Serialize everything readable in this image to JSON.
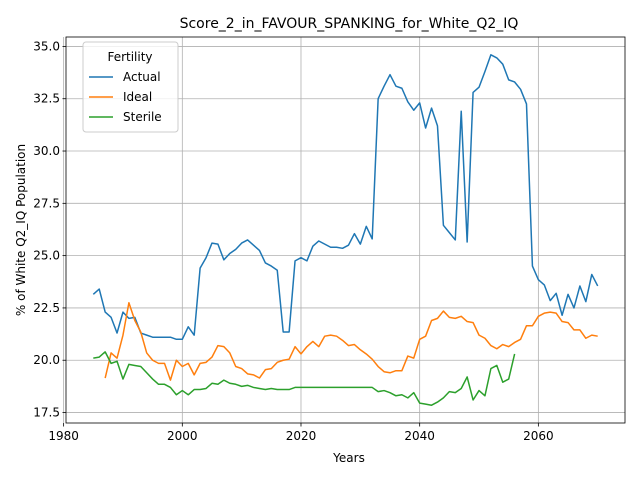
{
  "chart_data": {
    "type": "line",
    "title": "Score_2_in_FAVOUR_SPANKING_for_White_Q2_IQ",
    "xlabel": "Years",
    "ylabel": "% of White Q2_IQ Population",
    "xlim": [
      1980.4,
      2074.6
    ],
    "ylim": [
      17.0,
      35.45
    ],
    "x_ticks": [
      1980,
      2000,
      2020,
      2040,
      2060
    ],
    "y_ticks": [
      17.5,
      20.0,
      22.5,
      25.0,
      27.5,
      30.0,
      32.5,
      35.0
    ],
    "grid": true,
    "legend": {
      "title": "Fertility",
      "placement": "upper-left"
    },
    "series": [
      {
        "name": "Actual",
        "color": "#1f77b4",
        "points": [
          [
            1985,
            23.15
          ],
          [
            1986,
            23.4
          ],
          [
            1987,
            22.3
          ],
          [
            1988,
            22.05
          ],
          [
            1989,
            21.3
          ],
          [
            1990,
            22.3
          ],
          [
            1991,
            22.0
          ],
          [
            1992,
            22.05
          ],
          [
            1993,
            21.3
          ],
          [
            1994,
            21.2
          ],
          [
            1995,
            21.1
          ],
          [
            1996,
            21.1
          ],
          [
            1997,
            21.1
          ],
          [
            1998,
            21.1
          ],
          [
            1999,
            21.0
          ],
          [
            2000,
            21.0
          ],
          [
            2001,
            21.6
          ],
          [
            2002,
            21.2
          ],
          [
            2003,
            24.4
          ],
          [
            2004,
            24.9
          ],
          [
            2005,
            25.6
          ],
          [
            2006,
            25.55
          ],
          [
            2007,
            24.8
          ],
          [
            2008,
            25.1
          ],
          [
            2009,
            25.3
          ],
          [
            2010,
            25.6
          ],
          [
            2011,
            25.75
          ],
          [
            2012,
            25.5
          ],
          [
            2013,
            25.25
          ],
          [
            2014,
            24.65
          ],
          [
            2015,
            24.5
          ],
          [
            2016,
            24.3
          ],
          [
            2017,
            21.35
          ],
          [
            2018,
            21.35
          ],
          [
            2019,
            24.75
          ],
          [
            2020,
            24.9
          ],
          [
            2021,
            24.75
          ],
          [
            2022,
            25.45
          ],
          [
            2023,
            25.7
          ],
          [
            2024,
            25.55
          ],
          [
            2025,
            25.4
          ],
          [
            2026,
            25.4
          ],
          [
            2027,
            25.35
          ],
          [
            2028,
            25.5
          ],
          [
            2029,
            26.05
          ],
          [
            2030,
            25.55
          ],
          [
            2031,
            26.4
          ],
          [
            2032,
            25.8
          ],
          [
            2033,
            32.5
          ],
          [
            2034,
            33.1
          ],
          [
            2035,
            33.65
          ],
          [
            2036,
            33.1
          ],
          [
            2037,
            33.0
          ],
          [
            2038,
            32.35
          ],
          [
            2039,
            31.95
          ],
          [
            2040,
            32.3
          ],
          [
            2041,
            31.1
          ],
          [
            2042,
            32.05
          ],
          [
            2043,
            31.2
          ],
          [
            2044,
            26.45
          ],
          [
            2045,
            26.1
          ],
          [
            2046,
            25.75
          ],
          [
            2047,
            31.9
          ],
          [
            2048,
            25.65
          ],
          [
            2049,
            32.8
          ],
          [
            2050,
            33.05
          ],
          [
            2051,
            33.8
          ],
          [
            2052,
            34.6
          ],
          [
            2053,
            34.45
          ],
          [
            2054,
            34.15
          ],
          [
            2055,
            33.4
          ],
          [
            2056,
            33.3
          ],
          [
            2057,
            32.95
          ],
          [
            2058,
            32.25
          ],
          [
            2059,
            24.5
          ],
          [
            2060,
            23.85
          ],
          [
            2061,
            23.6
          ],
          [
            2062,
            22.85
          ],
          [
            2063,
            23.2
          ],
          [
            2064,
            22.15
          ],
          [
            2065,
            23.15
          ],
          [
            2066,
            22.5
          ],
          [
            2067,
            23.55
          ],
          [
            2068,
            22.8
          ],
          [
            2069,
            24.1
          ],
          [
            2070,
            23.55
          ]
        ]
      },
      {
        "name": "Ideal",
        "color": "#ff7f0e",
        "points": [
          [
            1987,
            19.15
          ],
          [
            1988,
            20.35
          ],
          [
            1989,
            20.1
          ],
          [
            1990,
            21.2
          ],
          [
            1991,
            22.75
          ],
          [
            1992,
            21.9
          ],
          [
            1993,
            21.35
          ],
          [
            1994,
            20.35
          ],
          [
            1995,
            20.0
          ],
          [
            1996,
            19.85
          ],
          [
            1997,
            19.85
          ],
          [
            1998,
            19.05
          ],
          [
            1999,
            20.0
          ],
          [
            2000,
            19.7
          ],
          [
            2001,
            19.85
          ],
          [
            2002,
            19.3
          ],
          [
            2003,
            19.85
          ],
          [
            2004,
            19.9
          ],
          [
            2005,
            20.15
          ],
          [
            2006,
            20.7
          ],
          [
            2007,
            20.65
          ],
          [
            2008,
            20.35
          ],
          [
            2009,
            19.7
          ],
          [
            2010,
            19.6
          ],
          [
            2011,
            19.35
          ],
          [
            2012,
            19.3
          ],
          [
            2013,
            19.15
          ],
          [
            2014,
            19.55
          ],
          [
            2015,
            19.6
          ],
          [
            2016,
            19.9
          ],
          [
            2017,
            20.0
          ],
          [
            2018,
            20.05
          ],
          [
            2019,
            20.65
          ],
          [
            2020,
            20.3
          ],
          [
            2021,
            20.65
          ],
          [
            2022,
            20.9
          ],
          [
            2023,
            20.65
          ],
          [
            2024,
            21.15
          ],
          [
            2025,
            21.2
          ],
          [
            2026,
            21.15
          ],
          [
            2027,
            20.95
          ],
          [
            2028,
            20.7
          ],
          [
            2029,
            20.75
          ],
          [
            2030,
            20.5
          ],
          [
            2031,
            20.3
          ],
          [
            2032,
            20.05
          ],
          [
            2033,
            19.7
          ],
          [
            2034,
            19.45
          ],
          [
            2035,
            19.4
          ],
          [
            2036,
            19.5
          ],
          [
            2037,
            19.5
          ],
          [
            2038,
            20.2
          ],
          [
            2039,
            20.1
          ],
          [
            2040,
            21.0
          ],
          [
            2041,
            21.15
          ],
          [
            2042,
            21.9
          ],
          [
            2043,
            22.0
          ],
          [
            2044,
            22.35
          ],
          [
            2045,
            22.05
          ],
          [
            2046,
            22.0
          ],
          [
            2047,
            22.1
          ],
          [
            2048,
            21.85
          ],
          [
            2049,
            21.8
          ],
          [
            2050,
            21.2
          ],
          [
            2051,
            21.05
          ],
          [
            2052,
            20.7
          ],
          [
            2053,
            20.55
          ],
          [
            2054,
            20.75
          ],
          [
            2055,
            20.65
          ],
          [
            2056,
            20.85
          ],
          [
            2057,
            21.0
          ],
          [
            2058,
            21.65
          ],
          [
            2059,
            21.65
          ],
          [
            2060,
            22.1
          ],
          [
            2061,
            22.25
          ],
          [
            2062,
            22.3
          ],
          [
            2063,
            22.25
          ],
          [
            2064,
            21.85
          ],
          [
            2065,
            21.8
          ],
          [
            2066,
            21.45
          ],
          [
            2067,
            21.45
          ],
          [
            2068,
            21.05
          ],
          [
            2069,
            21.2
          ],
          [
            2070,
            21.15
          ]
        ]
      },
      {
        "name": "Sterile",
        "color": "#2ca02c",
        "points": [
          [
            1985,
            20.1
          ],
          [
            1986,
            20.15
          ],
          [
            1987,
            20.4
          ],
          [
            1988,
            19.85
          ],
          [
            1989,
            19.95
          ],
          [
            1990,
            19.1
          ],
          [
            1991,
            19.8
          ],
          [
            1992,
            19.75
          ],
          [
            1993,
            19.7
          ],
          [
            1994,
            19.4
          ],
          [
            1995,
            19.1
          ],
          [
            1996,
            18.85
          ],
          [
            1997,
            18.85
          ],
          [
            1998,
            18.7
          ],
          [
            1999,
            18.35
          ],
          [
            2000,
            18.55
          ],
          [
            2001,
            18.35
          ],
          [
            2002,
            18.6
          ],
          [
            2003,
            18.6
          ],
          [
            2004,
            18.65
          ],
          [
            2005,
            18.9
          ],
          [
            2006,
            18.85
          ],
          [
            2007,
            19.05
          ],
          [
            2008,
            18.9
          ],
          [
            2009,
            18.85
          ],
          [
            2010,
            18.75
          ],
          [
            2011,
            18.8
          ],
          [
            2012,
            18.7
          ],
          [
            2013,
            18.65
          ],
          [
            2014,
            18.6
          ],
          [
            2015,
            18.65
          ],
          [
            2016,
            18.6
          ],
          [
            2017,
            18.6
          ],
          [
            2018,
            18.6
          ],
          [
            2019,
            18.7
          ],
          [
            2020,
            18.7
          ],
          [
            2021,
            18.7
          ],
          [
            2022,
            18.7
          ],
          [
            2023,
            18.7
          ],
          [
            2024,
            18.7
          ],
          [
            2025,
            18.7
          ],
          [
            2026,
            18.7
          ],
          [
            2027,
            18.7
          ],
          [
            2028,
            18.7
          ],
          [
            2029,
            18.7
          ],
          [
            2030,
            18.7
          ],
          [
            2031,
            18.7
          ],
          [
            2032,
            18.7
          ],
          [
            2033,
            18.5
          ],
          [
            2034,
            18.55
          ],
          [
            2035,
            18.45
          ],
          [
            2036,
            18.3
          ],
          [
            2037,
            18.35
          ],
          [
            2038,
            18.2
          ],
          [
            2039,
            18.45
          ],
          [
            2040,
            17.95
          ],
          [
            2041,
            17.9
          ],
          [
            2042,
            17.85
          ],
          [
            2043,
            18.0
          ],
          [
            2044,
            18.2
          ],
          [
            2045,
            18.5
          ],
          [
            2046,
            18.45
          ],
          [
            2047,
            18.65
          ],
          [
            2048,
            19.2
          ],
          [
            2049,
            18.1
          ],
          [
            2050,
            18.55
          ],
          [
            2051,
            18.3
          ],
          [
            2052,
            19.6
          ],
          [
            2053,
            19.75
          ],
          [
            2054,
            18.95
          ],
          [
            2055,
            19.1
          ],
          [
            2056,
            20.3
          ]
        ]
      }
    ]
  }
}
